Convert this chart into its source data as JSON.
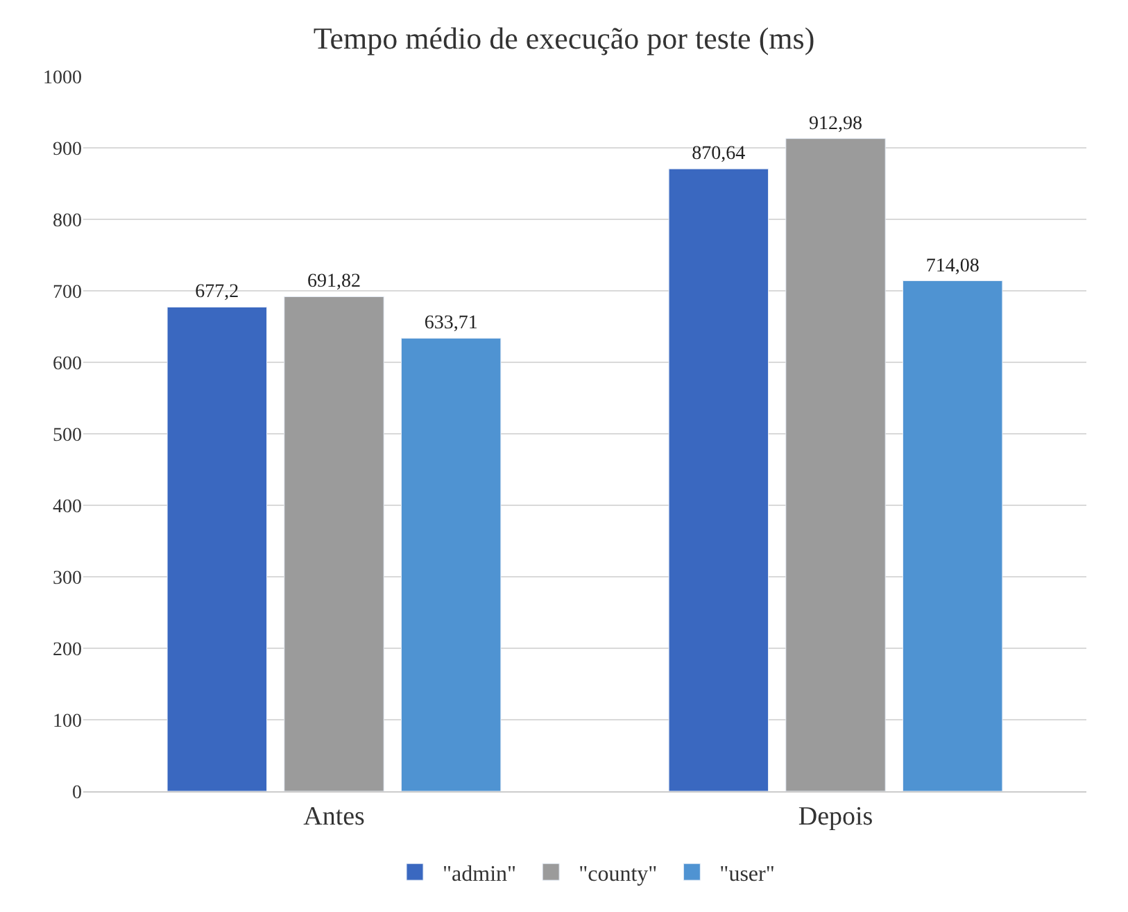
{
  "chart_data": {
    "type": "bar",
    "title": "Tempo médio de execução por teste (ms)",
    "categories": [
      "Antes",
      "Depois"
    ],
    "series": [
      {
        "name": "\"admin\"",
        "color": "#3a68c0",
        "values": [
          677.2,
          870.64
        ],
        "value_labels": [
          "677,2",
          "870,64"
        ]
      },
      {
        "name": "\"county\"",
        "color": "#9b9b9b",
        "values": [
          691.82,
          912.98
        ],
        "value_labels": [
          "691,82",
          "912,98"
        ]
      },
      {
        "name": "\"user\"",
        "color": "#4f93d2",
        "values": [
          633.71,
          714.08
        ],
        "value_labels": [
          "633,71",
          "714,08"
        ]
      }
    ],
    "ylim": [
      0,
      1000
    ],
    "yticks": [
      0,
      100,
      200,
      300,
      400,
      500,
      600,
      700,
      800,
      900,
      1000
    ],
    "grid": "y",
    "legend": "bottom"
  }
}
